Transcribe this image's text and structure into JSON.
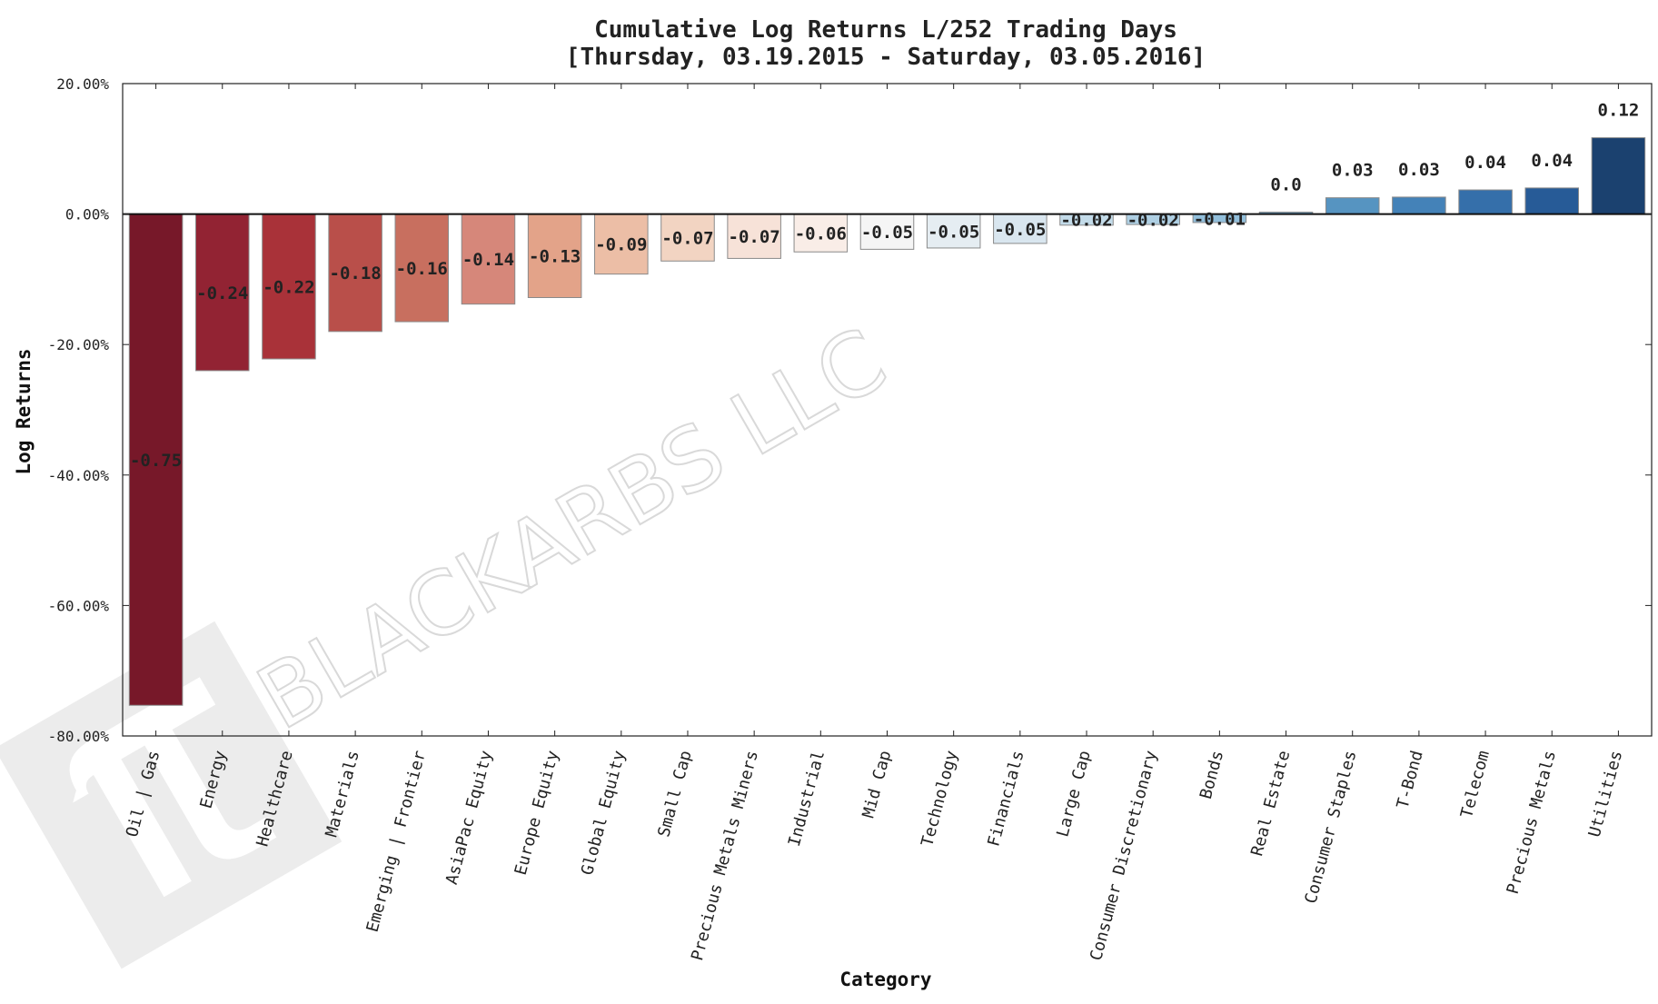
{
  "watermark": {
    "text": "BLACKARBS LLC",
    "logo_icon": "pi-logo-icon"
  },
  "chart_data": {
    "type": "bar",
    "title": "Cumulative Log Returns L/252 Trading Days",
    "subtitle": "[Thursday, 03.19.2015 - Saturday, 03.05.2016]",
    "xlabel": "Category",
    "ylabel": "Log Returns",
    "ylim": [
      -0.8,
      0.2
    ],
    "yticks": [
      0.2,
      0.0,
      -0.2,
      -0.4,
      -0.6,
      -0.8
    ],
    "ytick_labels": [
      "20.00%",
      "0.00%",
      "-20.00%",
      "-40.00%",
      "-60.00%",
      "-80.00%"
    ],
    "grid": false,
    "categories": [
      "Oil | Gas",
      "Energy",
      "Healthcare",
      "Materials",
      "Emerging | Frontier",
      "AsiaPac Equity",
      "Europe Equity",
      "Global Equity",
      "Small Cap",
      "Precious Metals Miners",
      "Industrial",
      "Mid Cap",
      "Technology",
      "Financials",
      "Large Cap",
      "Consumer Discretionary",
      "Bonds",
      "Real Estate",
      "Consumer Staples",
      "T-Bond",
      "Telecom",
      "Precious Metals",
      "Utilities"
    ],
    "values": [
      -0.753,
      -0.24,
      -0.222,
      -0.18,
      -0.165,
      -0.138,
      -0.128,
      -0.092,
      -0.072,
      -0.068,
      -0.058,
      -0.054,
      -0.052,
      -0.045,
      -0.017,
      -0.016,
      -0.013,
      0.003,
      0.025,
      0.026,
      0.037,
      0.04,
      0.117
    ],
    "data_labels": [
      "-0.75",
      "-0.24",
      "-0.22",
      "-0.18",
      "-0.16",
      "-0.14",
      "-0.13",
      "-0.09",
      "-0.07",
      "-0.07",
      "-0.06",
      "-0.05",
      "-0.05",
      "-0.05",
      "-0.02",
      "-0.02",
      "-0.01",
      "0.0",
      "0.03",
      "0.03",
      "0.04",
      "0.04",
      "0.12"
    ],
    "colors": [
      "#771829",
      "#922333",
      "#a93239",
      "#b94f4a",
      "#c86f5f",
      "#d6877a",
      "#e3a389",
      "#ecbea6",
      "#f2d4c2",
      "#f7e2d8",
      "#f9ede7",
      "#f5f5f5",
      "#e5edf2",
      "#d9e6ef",
      "#c3dbe9",
      "#aecfe3",
      "#92bfdb",
      "#71a9cf",
      "#5694c1",
      "#4482b8",
      "#356faa",
      "#275b97",
      "#1b416f"
    ]
  }
}
